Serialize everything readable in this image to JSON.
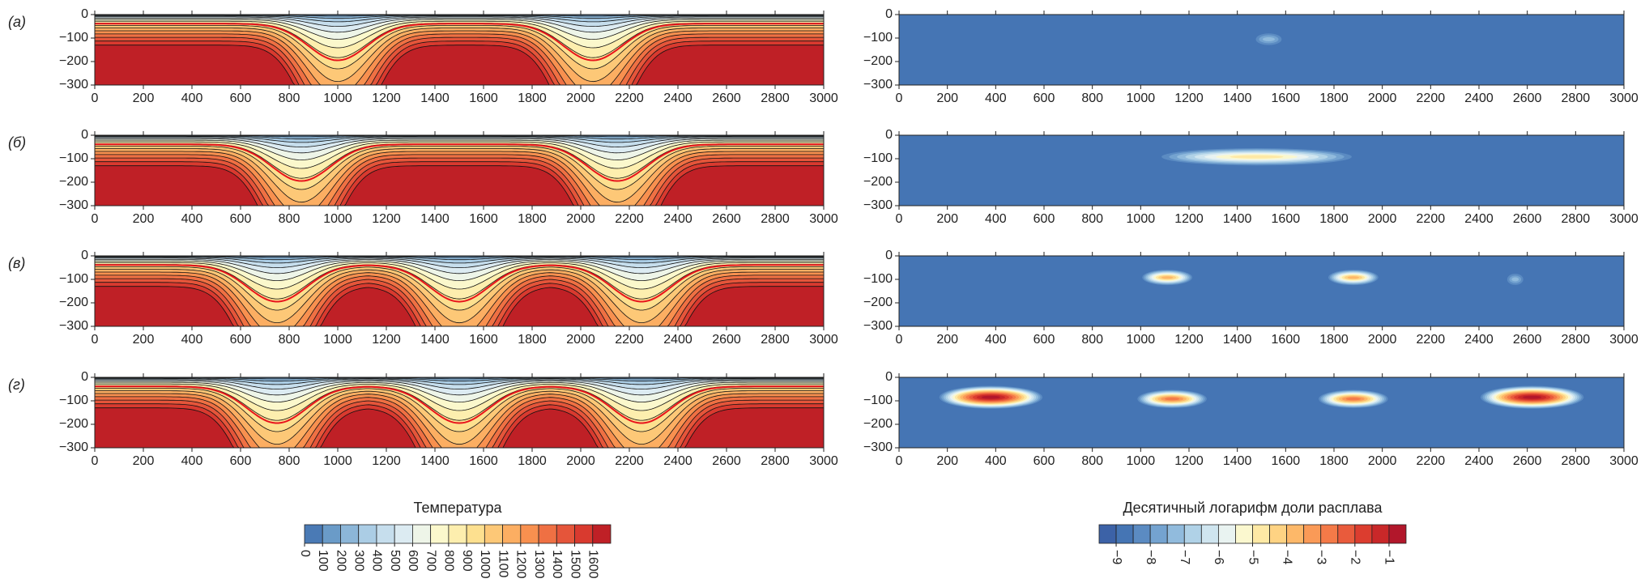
{
  "chart_data": [
    {
      "type": "contour",
      "label": "(а)",
      "xlim": [
        0,
        3000
      ],
      "ylim": [
        -300,
        0
      ],
      "xticks": [
        0,
        200,
        400,
        600,
        800,
        1000,
        1200,
        1400,
        1600,
        1800,
        2000,
        2200,
        2400,
        2600,
        2800,
        3000
      ],
      "yticks": [
        0,
        {
          "value": -100,
          "label": "−100"
        },
        {
          "value": -200,
          "label": "−200"
        },
        {
          "value": -300,
          "label": "−300"
        }
      ]
    },
    {
      "type": "heatmap",
      "xlim": [
        0,
        3000
      ],
      "ylim": [
        -300,
        0
      ],
      "xticks": [
        0,
        200,
        400,
        600,
        800,
        1000,
        1200,
        1400,
        1600,
        1800,
        2000,
        2200,
        2400,
        2600,
        2800,
        3000
      ],
      "yticks": [
        0,
        {
          "value": -100,
          "label": "−100"
        },
        {
          "value": -200,
          "label": "−200"
        },
        {
          "value": -300,
          "label": "−300"
        }
      ]
    },
    {
      "type": "contour",
      "label": "(б)",
      "xlim": [
        0,
        3000
      ],
      "ylim": [
        -300,
        0
      ],
      "xticks": [
        0,
        200,
        400,
        600,
        800,
        1000,
        1200,
        1400,
        1600,
        1800,
        2000,
        2200,
        2400,
        2600,
        2800,
        3000
      ],
      "yticks": [
        0,
        {
          "value": -100,
          "label": "−100"
        },
        {
          "value": -200,
          "label": "−200"
        },
        {
          "value": -300,
          "label": "−300"
        }
      ]
    },
    {
      "type": "heatmap",
      "xlim": [
        0,
        3000
      ],
      "ylim": [
        -300,
        0
      ],
      "xticks": [
        0,
        200,
        400,
        600,
        800,
        1000,
        1200,
        1400,
        1600,
        1800,
        2000,
        2200,
        2400,
        2600,
        2800,
        3000
      ],
      "yticks": [
        0,
        {
          "value": -100,
          "label": "−100"
        },
        {
          "value": -200,
          "label": "−200"
        },
        {
          "value": -300,
          "label": "−300"
        }
      ]
    },
    {
      "type": "contour",
      "label": "(в)",
      "xlim": [
        0,
        3000
      ],
      "ylim": [
        -300,
        0
      ],
      "xticks": [
        0,
        200,
        400,
        600,
        800,
        1000,
        1200,
        1400,
        1600,
        1800,
        2000,
        2200,
        2400,
        2600,
        2800,
        3000
      ],
      "yticks": [
        0,
        {
          "value": -100,
          "label": "−100"
        },
        {
          "value": -200,
          "label": "−200"
        },
        {
          "value": -300,
          "label": "−300"
        }
      ]
    },
    {
      "type": "heatmap",
      "xlim": [
        0,
        3000
      ],
      "ylim": [
        -300,
        0
      ],
      "xticks": [
        0,
        200,
        400,
        600,
        800,
        1000,
        1200,
        1400,
        1600,
        1800,
        2000,
        2200,
        2400,
        2600,
        2800,
        3000
      ],
      "yticks": [
        0,
        {
          "value": -100,
          "label": "−100"
        },
        {
          "value": -200,
          "label": "−200"
        },
        {
          "value": -300,
          "label": "−300"
        }
      ]
    },
    {
      "type": "contour",
      "label": "(г)",
      "xlim": [
        0,
        3000
      ],
      "ylim": [
        -300,
        0
      ],
      "xticks": [
        0,
        200,
        400,
        600,
        800,
        1000,
        1200,
        1400,
        1600,
        1800,
        2000,
        2200,
        2400,
        2600,
        2800,
        3000
      ],
      "yticks": [
        0,
        {
          "value": -100,
          "label": "−100"
        },
        {
          "value": -200,
          "label": "−200"
        },
        {
          "value": -300,
          "label": "−300"
        }
      ]
    },
    {
      "type": "heatmap",
      "xlim": [
        0,
        3000
      ],
      "ylim": [
        -300,
        0
      ],
      "xticks": [
        0,
        200,
        400,
        600,
        800,
        1000,
        1200,
        1400,
        1600,
        1800,
        2000,
        2200,
        2400,
        2600,
        2800,
        3000
      ],
      "yticks": [
        0,
        {
          "value": -100,
          "label": "−100"
        },
        {
          "value": -200,
          "label": "−200"
        },
        {
          "value": -300,
          "label": "−300"
        }
      ]
    }
  ],
  "colorbars": [
    {
      "title": "Температура",
      "clim": [
        0,
        1700
      ],
      "ticks": [
        0,
        100,
        200,
        300,
        400,
        500,
        600,
        700,
        800,
        900,
        1000,
        1100,
        1200,
        1300,
        1400,
        1500,
        1600
      ],
      "colors": [
        "#4a7ab5",
        "#6a9bc8",
        "#8cb6d8",
        "#abcde5",
        "#c6deed",
        "#dcebf2",
        "#eef5e8",
        "#fbf8cc",
        "#fdeeae",
        "#fde08f",
        "#fdc877",
        "#fcae62",
        "#f8904f",
        "#ef7043",
        "#e5553a",
        "#d93a2f",
        "#bf2026"
      ]
    },
    {
      "title": "Десятичный логарифм доли расплава",
      "clim": [
        -9.5,
        -0.5
      ],
      "ticks": [
        {
          "value": -9,
          "label": "−9"
        },
        {
          "value": -8,
          "label": "−8"
        },
        {
          "value": -7,
          "label": "−7"
        },
        {
          "value": -6,
          "label": "−6"
        },
        {
          "value": -5,
          "label": "−5"
        },
        {
          "value": -4,
          "label": "−4"
        },
        {
          "value": -3,
          "label": "−3"
        },
        {
          "value": -2,
          "label": "−2"
        },
        {
          "value": -1,
          "label": "−1"
        }
      ],
      "colors": [
        "#3c62a7",
        "#4575b4",
        "#5b8bc2",
        "#74a3d0",
        "#91bbdd",
        "#b0d2e7",
        "#cfe5ef",
        "#e9f3f1",
        "#fbf8cf",
        "#fee9a5",
        "#fed383",
        "#fdb869",
        "#fa9a57",
        "#f47a48",
        "#e95b3c",
        "#dc3d2f",
        "#c92829",
        "#b2172b"
      ]
    }
  ]
}
